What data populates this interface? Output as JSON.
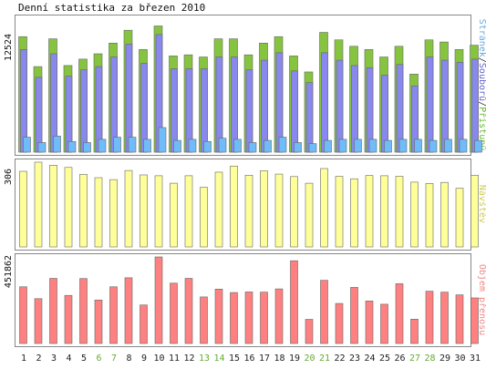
{
  "title": "Denní statistika za březen 2010",
  "chart_data": [
    {
      "type": "bar",
      "panel": "top",
      "ylabel_parts": [
        {
          "text": "Stránek",
          "color": "#66aadd"
        },
        {
          "text": "/",
          "color": "#333333"
        },
        {
          "text": "Souborů",
          "color": "#6666cc"
        },
        {
          "text": "/",
          "color": "#333333"
        },
        {
          "text": "Přístupů",
          "color": "#66bb33"
        }
      ],
      "ymax_label": "12524",
      "ylim": [
        0,
        12524
      ],
      "series": [
        {
          "name": "Přístupů",
          "color": "#86c440",
          "values": [
            10800,
            8000,
            10600,
            8100,
            8700,
            9200,
            10200,
            11400,
            9600,
            11800,
            9000,
            9100,
            8900,
            10600,
            10600,
            9100,
            10200,
            10800,
            9000,
            7500,
            11200,
            10500,
            9900,
            9600,
            8900,
            9900,
            7300,
            10500,
            10300,
            9600,
            10000
          ]
        },
        {
          "name": "Souborů",
          "color": "#8888ee",
          "values": [
            9600,
            7000,
            9200,
            7100,
            7700,
            8000,
            8900,
            10100,
            8300,
            11000,
            7800,
            7800,
            7800,
            8900,
            8900,
            7700,
            8600,
            9300,
            7600,
            6500,
            9300,
            8600,
            8100,
            7900,
            7200,
            8200,
            6200,
            8900,
            8600,
            8400,
            8700
          ]
        },
        {
          "name": "Stránek",
          "color": "#70bcf8",
          "values": [
            1400,
            900,
            1500,
            1000,
            900,
            1200,
            1400,
            1400,
            1200,
            2300,
            1100,
            1200,
            1000,
            1300,
            1200,
            900,
            1100,
            1400,
            900,
            800,
            1100,
            1200,
            1200,
            1200,
            1100,
            1200,
            1200,
            1100,
            1200,
            1200,
            1100
          ]
        }
      ]
    },
    {
      "type": "bar",
      "panel": "middle",
      "ylabel": "Návštěv",
      "ylabel_color": "#cccc55",
      "ymax_label": "306",
      "ylim": [
        0,
        306
      ],
      "series": [
        {
          "name": "Návštěv",
          "color": "#ffff99",
          "values": [
            273,
            306,
            295,
            287,
            262,
            250,
            243,
            276,
            260,
            257,
            230,
            257,
            215,
            270,
            292,
            259,
            275,
            263,
            254,
            230,
            283,
            255,
            246,
            258,
            257,
            255,
            234,
            229,
            233,
            212,
            259
          ]
        }
      ]
    },
    {
      "type": "bar",
      "panel": "bottom",
      "ylabel": "Objem přenosu",
      "ylabel_color": "#ee8888",
      "ymax_label": "451862",
      "ylim": [
        0,
        451862
      ],
      "series": [
        {
          "name": "Objem přenosu",
          "color": "#ff8080",
          "values": [
            296000,
            234000,
            340000,
            251000,
            339000,
            227000,
            296000,
            343000,
            201000,
            451862,
            315000,
            340000,
            243000,
            284000,
            266000,
            269000,
            268000,
            285000,
            432000,
            126000,
            330000,
            209000,
            293000,
            222000,
            205000,
            312000,
            127000,
            273000,
            268000,
            254000,
            238000
          ]
        }
      ]
    }
  ],
  "days": [
    "1",
    "2",
    "3",
    "4",
    "5",
    "6",
    "7",
    "8",
    "9",
    "10",
    "11",
    "12",
    "13",
    "14",
    "15",
    "16",
    "17",
    "18",
    "19",
    "20",
    "21",
    "22",
    "23",
    "24",
    "25",
    "26",
    "27",
    "28",
    "29",
    "30",
    "31"
  ],
  "weekend": [
    6,
    7,
    13,
    14,
    20,
    21,
    27,
    28
  ],
  "colors": {
    "weekday": "#222222",
    "weekend": "#66aa33",
    "frame": "#888888",
    "bar_outline": "#666666"
  }
}
